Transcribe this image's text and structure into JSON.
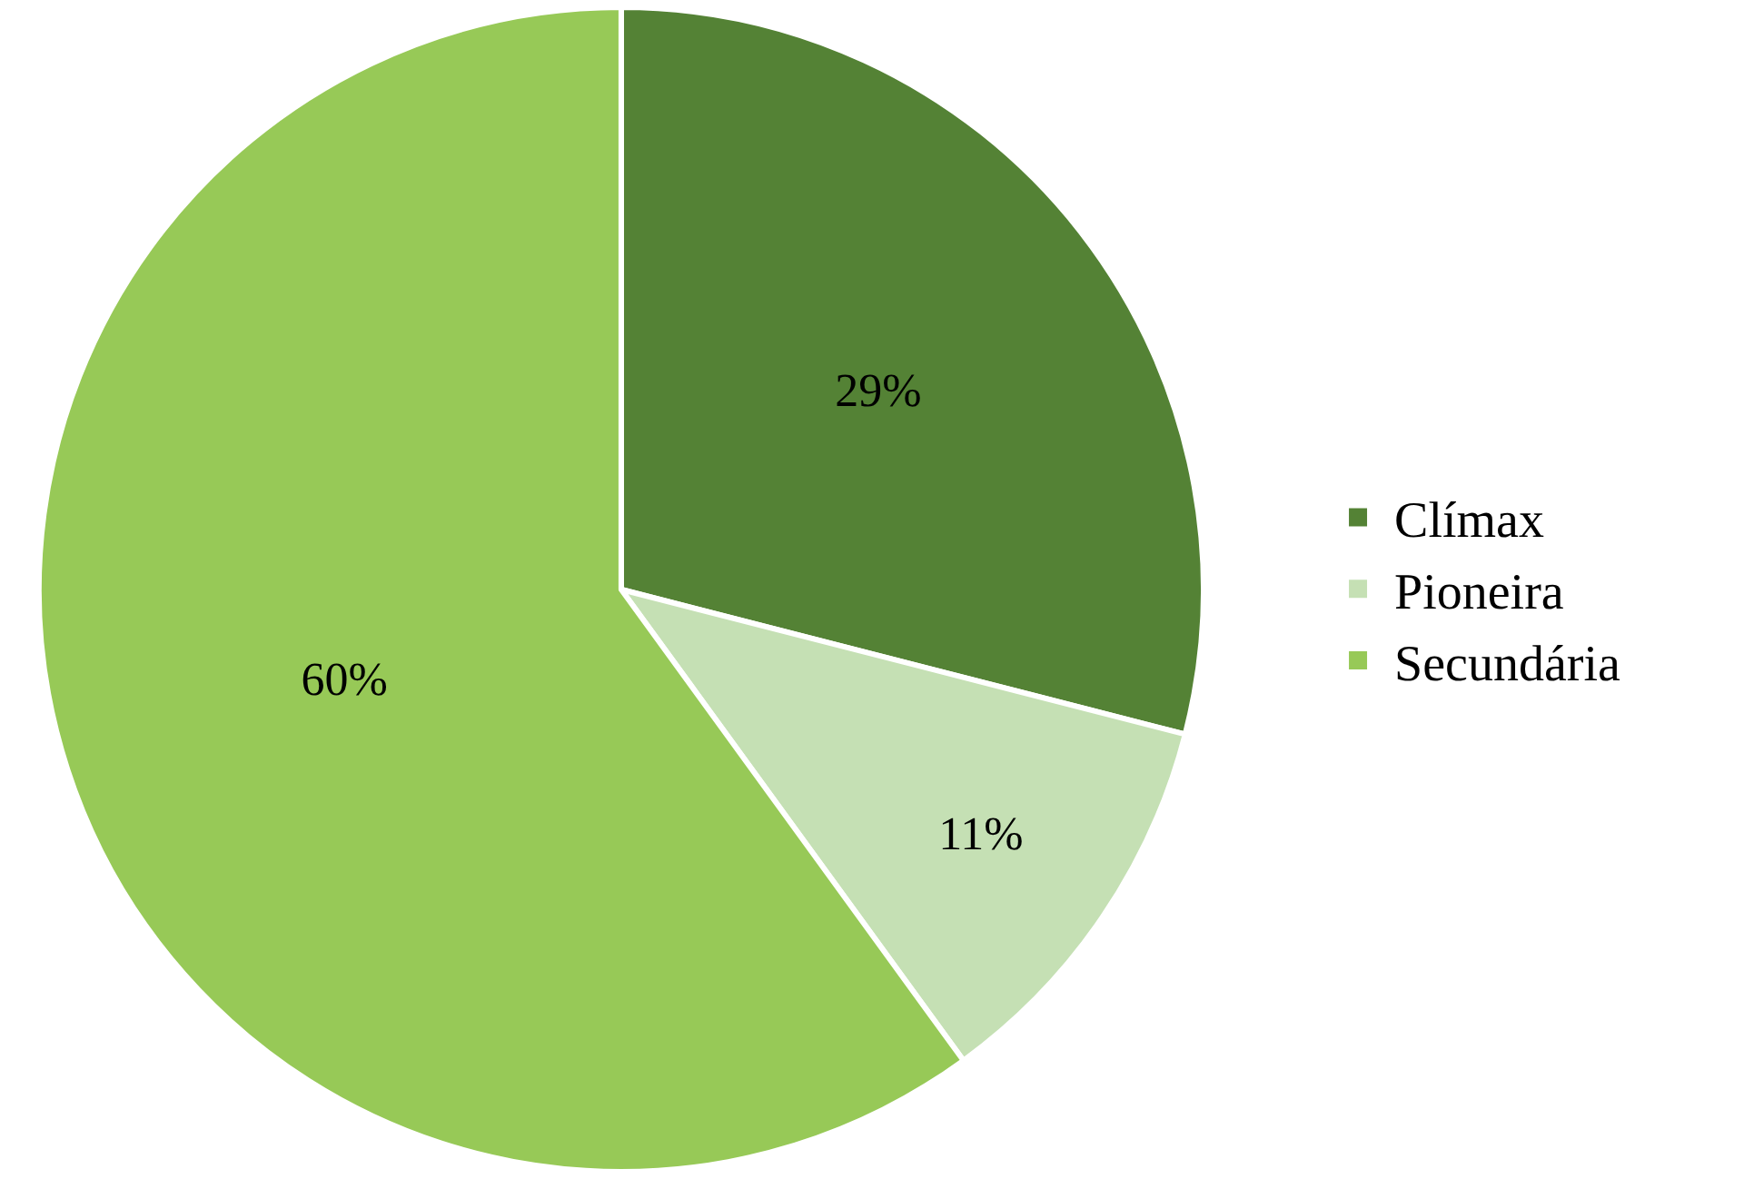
{
  "chart_data": {
    "type": "pie",
    "categories": [
      "Clímax",
      "Pioneira",
      "Secundária"
    ],
    "values": [
      29,
      11,
      60
    ],
    "value_labels": [
      "29%",
      "11%",
      "60%"
    ],
    "colors": [
      "#548235",
      "#c5e0b4",
      "#97c957"
    ],
    "legend": "right"
  }
}
